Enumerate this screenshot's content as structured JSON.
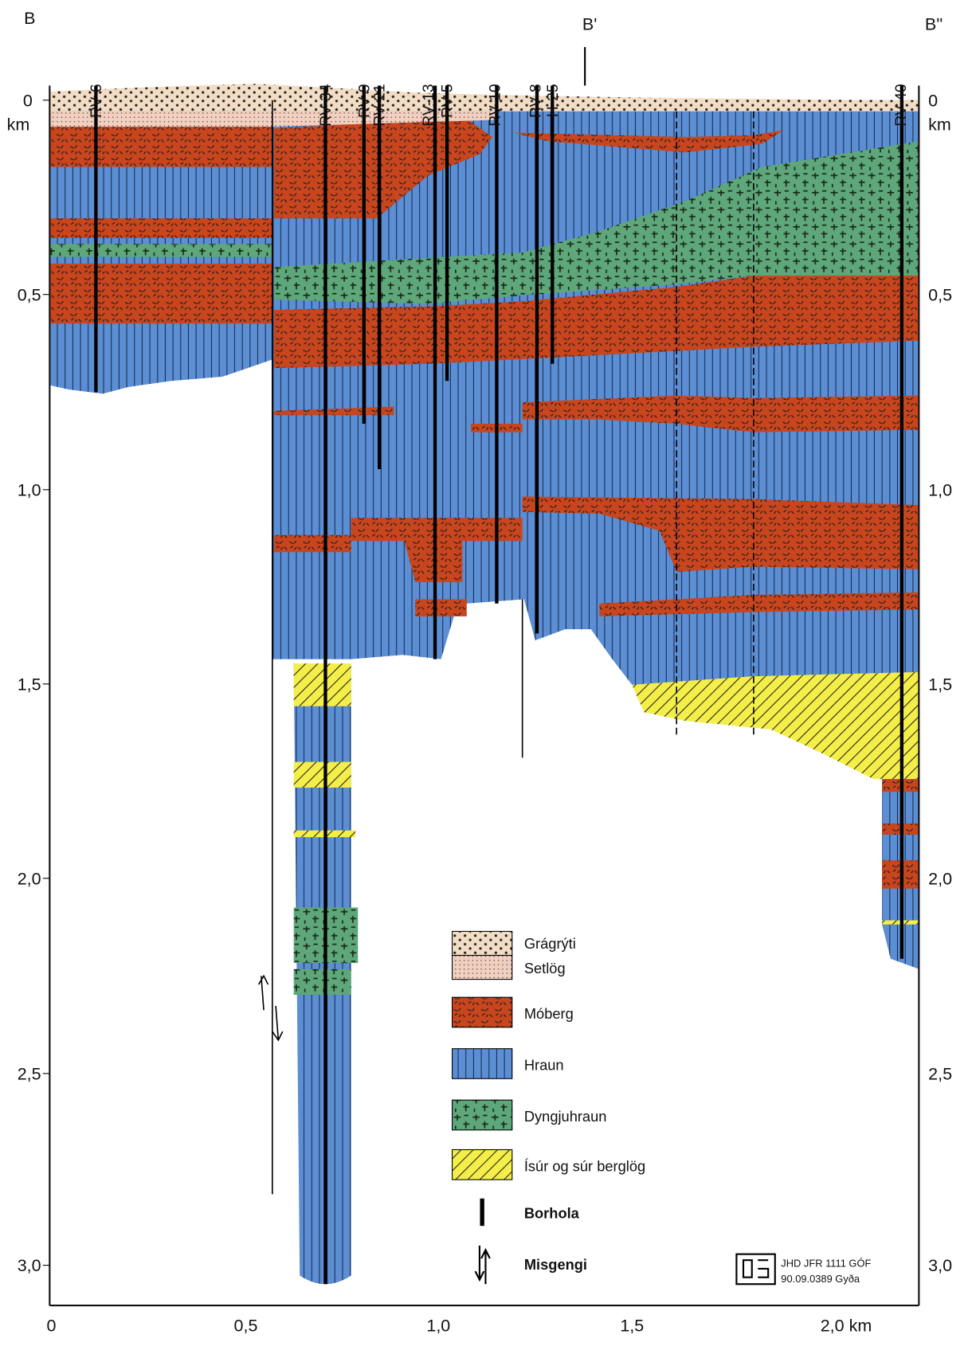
{
  "section_labels": [
    "B",
    "B'",
    "B''"
  ],
  "wells": [
    "RV-6",
    "RV-34",
    "RV-9",
    "RV-21",
    "RV-13",
    "RV-5",
    "RV-10",
    "RV-8",
    "H-25",
    "RV-40"
  ],
  "depth_axis": {
    "unit": "km",
    "ticks": [
      "0",
      "0,5",
      "1,0",
      "1,5",
      "2,0",
      "2,5",
      "3,0"
    ]
  },
  "distance_axis": {
    "ticks": [
      "0",
      "0,5",
      "1,0",
      "1,5",
      "2,0 km"
    ]
  },
  "legend": [
    "Grágrýti",
    "Setlög",
    "Móberg",
    "Hraun",
    "Dyngjuhraun",
    "Ísúr og súr berglög",
    "Borhola",
    "Misgengi"
  ],
  "credit": [
    "JHD JFR 1111 GÓF",
    "90.09.0389 Gyða"
  ]
}
